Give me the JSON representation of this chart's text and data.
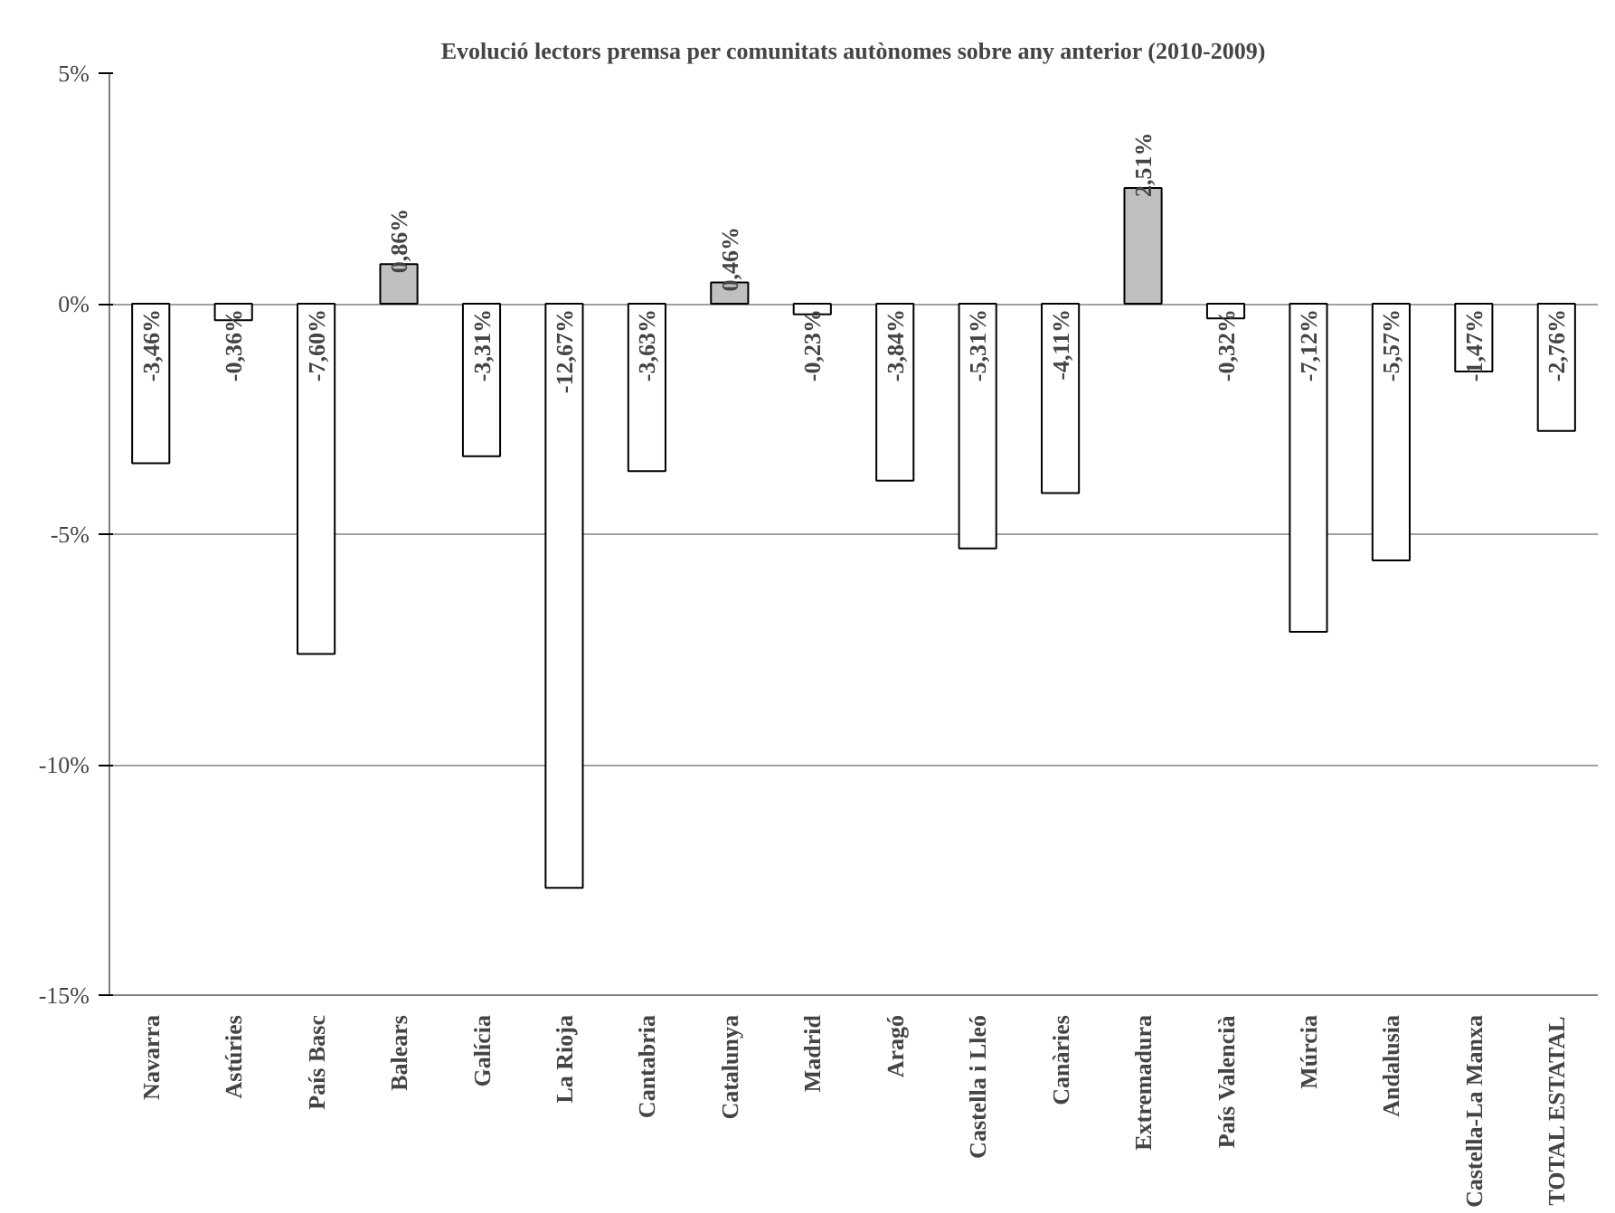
{
  "chart_data": {
    "type": "bar",
    "title": "Evolució lectors premsa per comunitats autònomes sobre any anterior (2010-2009)",
    "categories": [
      "Navarra",
      "Astúries",
      "País Basc",
      "Balears",
      "Galícia",
      "La Rioja",
      "Cantabria",
      "Catalunya",
      "Madrid",
      "Aragó",
      "Castella i Lleó",
      "Canàries",
      "Extremadura",
      "País Valencià",
      "Múrcia",
      "Andalusia",
      "Castella-La Manxa",
      "TOTAL ESTATAL"
    ],
    "values": [
      -3.46,
      -0.36,
      -7.6,
      0.86,
      -3.31,
      -12.67,
      -3.63,
      0.46,
      -0.23,
      -3.84,
      -5.31,
      -4.11,
      2.51,
      -0.32,
      -7.12,
      -5.57,
      -1.47,
      -2.76
    ],
    "value_labels": [
      "-3,46%",
      "-0,36%",
      "-7,60%",
      "0,86%",
      "-3,31%",
      "-12,67%",
      "-3,63%",
      "0,46%",
      "-0,23%",
      "-3,84%",
      "-5,31%",
      "-4,11%",
      "2,51%",
      "-0,32%",
      "-7,12%",
      "-5,57%",
      "-1,47%",
      "-2,76%"
    ],
    "colors": [
      "#ffffff",
      "#ffffff",
      "#ffffff",
      "#c0c0c0",
      "#ffffff",
      "#ffffff",
      "#ffffff",
      "#c0c0c0",
      "#ffffff",
      "#ffffff",
      "#ffffff",
      "#ffffff",
      "#c0c0c0",
      "#ffffff",
      "#ffffff",
      "#ffffff",
      "#ffffff",
      "#ffffff"
    ],
    "ylim": [
      -15,
      5
    ],
    "yticks": [
      {
        "value": -15,
        "label": "-15%"
      },
      {
        "value": -10,
        "label": "-10%"
      },
      {
        "value": -5,
        "label": "-5%"
      },
      {
        "value": 0,
        "label": "0%"
      },
      {
        "value": 5,
        "label": "5%"
      }
    ],
    "grid": "y"
  }
}
